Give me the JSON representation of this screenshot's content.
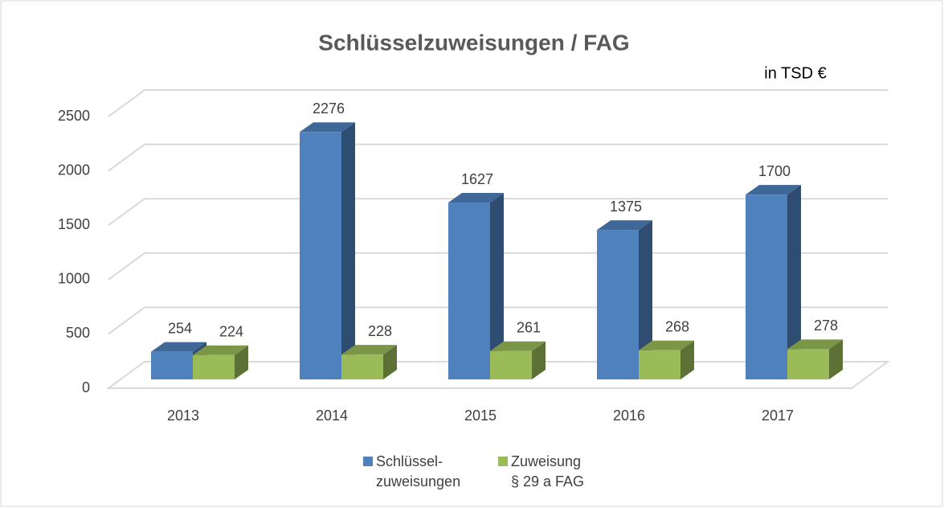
{
  "chart_data": {
    "type": "bar3d",
    "title": "Schlüsselzuweisungen / FAG",
    "unit_label": "in TSD €",
    "categories": [
      "2013",
      "2014",
      "2015",
      "2016",
      "2017"
    ],
    "series": [
      {
        "name": "Schlüssel-\nzuweisungen",
        "color": "#4f81bd",
        "values": [
          254,
          2276,
          1627,
          1375,
          1700
        ]
      },
      {
        "name": "Zuweisung\n§ 29 a FAG",
        "color": "#9bbb59",
        "values": [
          224,
          228,
          261,
          268,
          278
        ]
      }
    ],
    "ylim": [
      0,
      2500
    ],
    "yticks": [
      0,
      500,
      1000,
      1500,
      2000,
      2500
    ],
    "grid": true,
    "legend": "bottom"
  }
}
